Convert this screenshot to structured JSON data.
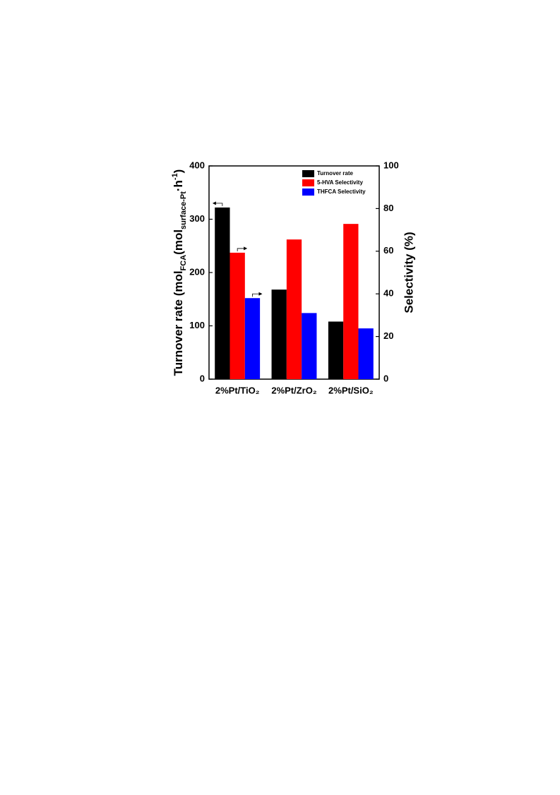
{
  "chart_data": {
    "type": "bar",
    "ylabel": [
      {
        "text": "Turnover rate (mol"
      },
      {
        "text": "FCA",
        "shift": "sub"
      },
      {
        "text": "(mol"
      },
      {
        "text": "surface-Pt",
        "shift": "sub"
      },
      {
        "text": "·h"
      },
      {
        "text": "-1",
        "shift": "super"
      },
      {
        "text": ")"
      }
    ],
    "y2label": "Selectivity (%)",
    "categories": [
      "2%Pt/TiO₂",
      "2%Pt/ZrO₂",
      "2%Pt/SiO₂"
    ],
    "series": [
      {
        "name": "Turnover rate",
        "color": "#000000",
        "values": [
          322,
          168,
          108
        ]
      },
      {
        "name": "5-HVA Selectivity",
        "color": "#ff0000",
        "values": [
          59.3,
          65.5,
          72.8
        ],
        "axis": "y2"
      },
      {
        "name": "THFCA Selectivity",
        "color": "#0000ff",
        "values": [
          38,
          31,
          23.8
        ],
        "axis": "y2"
      }
    ],
    "ylim": [
      0,
      400
    ],
    "yticks": [
      0,
      100,
      200,
      300,
      400
    ],
    "y2lim": [
      0,
      100
    ],
    "y2ticks": [
      0,
      20,
      40,
      60,
      80,
      100
    ],
    "legend": "upper right"
  }
}
